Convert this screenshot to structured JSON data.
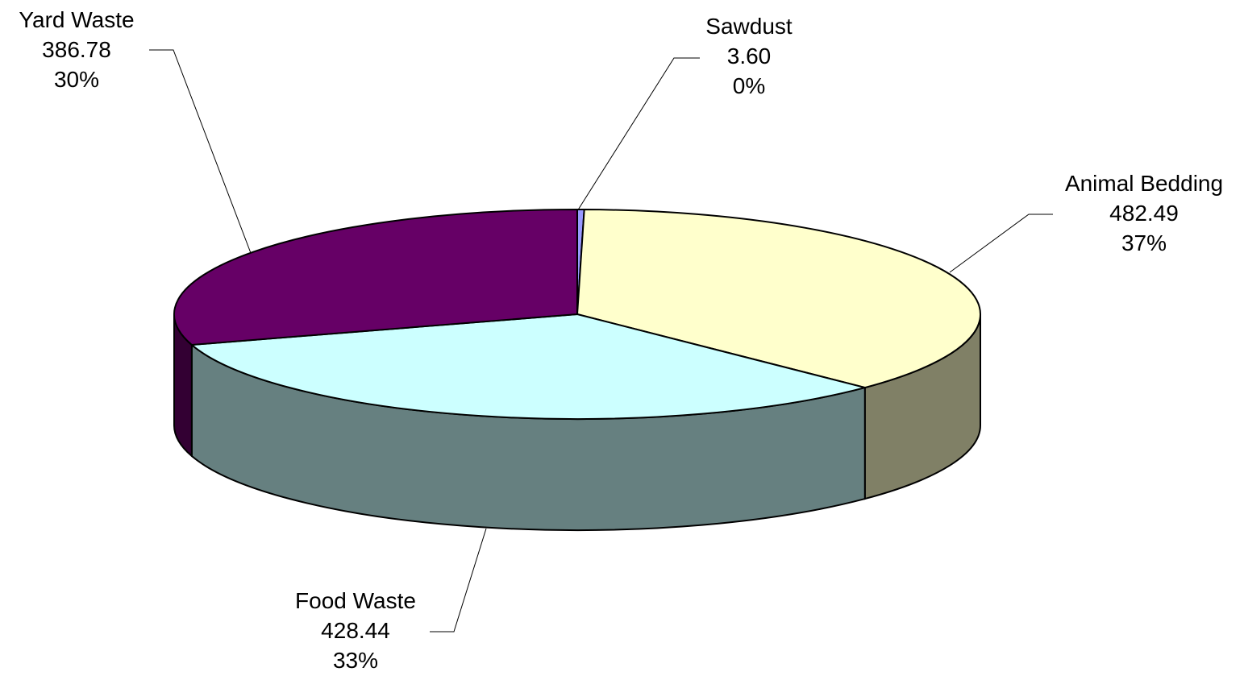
{
  "chart_data": {
    "type": "pie",
    "style": "3d",
    "title": "",
    "slices": [
      {
        "name": "Sawdust",
        "value": 3.6,
        "value_label": "3.60",
        "percent_label": "0%",
        "color": "#9999FF",
        "side_color": "#4D4D80"
      },
      {
        "name": "Animal Bedding",
        "value": 482.49,
        "value_label": "482.49",
        "percent_label": "37%",
        "color": "#FFFFCC",
        "side_color": "#808066"
      },
      {
        "name": "Food Waste",
        "value": 428.44,
        "value_label": "428.44",
        "percent_label": "33%",
        "color": "#CCFFFF",
        "side_color": "#668080"
      },
      {
        "name": "Yard Waste",
        "value": 386.78,
        "value_label": "386.78",
        "percent_label": "30%",
        "color": "#660066",
        "side_color": "#330033"
      }
    ]
  }
}
